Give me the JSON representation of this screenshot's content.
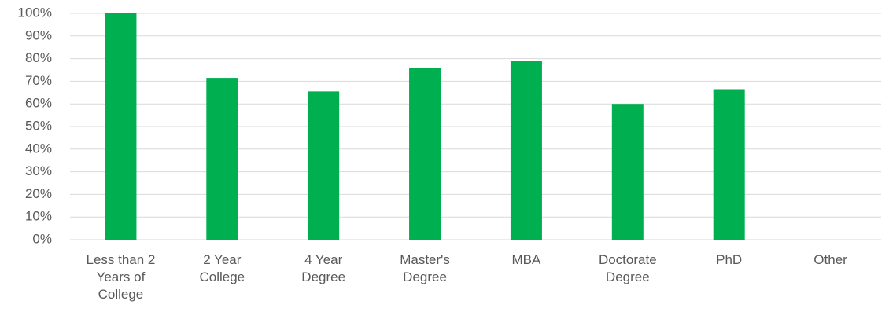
{
  "chart_data": {
    "type": "bar",
    "categories": [
      "Less than 2 Years of College",
      "2 Year College",
      "4 Year Degree",
      "Master's Degree",
      "MBA",
      "Doctorate Degree",
      "PhD",
      "Other"
    ],
    "values": [
      100,
      71.5,
      65.5,
      76,
      79,
      60,
      66.5,
      0
    ],
    "color": "#00b050",
    "ylim": [
      0,
      100
    ],
    "yticks": [
      {
        "value": 0,
        "label": "0%"
      },
      {
        "value": 10,
        "label": "10%"
      },
      {
        "value": 20,
        "label": "20%"
      },
      {
        "value": 30,
        "label": "30%"
      },
      {
        "value": 40,
        "label": "40%"
      },
      {
        "value": 50,
        "label": "50%"
      },
      {
        "value": 60,
        "label": "60%"
      },
      {
        "value": 70,
        "label": "70%"
      },
      {
        "value": 80,
        "label": "80%"
      },
      {
        "value": 90,
        "label": "90%"
      },
      {
        "value": 100,
        "label": "100%"
      }
    ],
    "grid": true
  }
}
